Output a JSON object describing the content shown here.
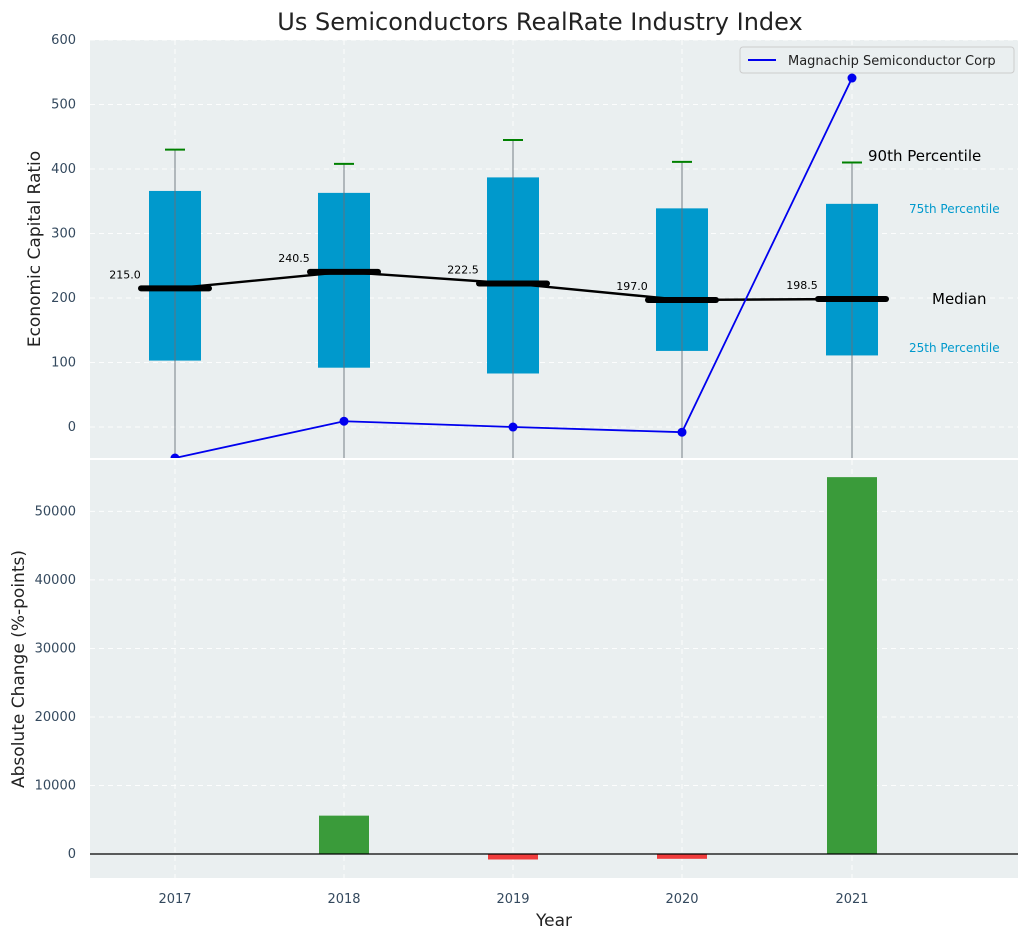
{
  "chart_data": [
    {
      "type": "box",
      "title": "Us Semiconductors RealRate Industry Index",
      "xlabel": "",
      "ylabel": "Economic Capital Ratio",
      "ylim": [
        -48,
        600
      ],
      "yticks": [
        0,
        100,
        200,
        300,
        400,
        500,
        600
      ],
      "categories": [
        "2017",
        "2018",
        "2019",
        "2020",
        "2021"
      ],
      "boxes": [
        {
          "year": "2017",
          "q1": 103,
          "q3": 366,
          "median": 215.0,
          "p90": 430
        },
        {
          "year": "2018",
          "q1": 92,
          "q3": 363,
          "median": 240.5,
          "p90": 408
        },
        {
          "year": "2019",
          "q1": 83,
          "q3": 387,
          "median": 222.5,
          "p90": 445
        },
        {
          "year": "2020",
          "q1": 118,
          "q3": 339,
          "median": 197.0,
          "p90": 411
        },
        {
          "year": "2021",
          "q1": 111,
          "q3": 346,
          "median": 198.5,
          "p90": 410
        }
      ],
      "median_labels": [
        "215.0",
        "240.5",
        "222.5",
        "197.0",
        "198.5"
      ],
      "series": [
        {
          "name": "Magnachip Semiconductor Corp",
          "color": "#0000ee",
          "values": [
            -48,
            9,
            0,
            -8,
            541
          ]
        }
      ],
      "legend": {
        "label": "Magnachip Semiconductor Corp",
        "position": "top-right"
      },
      "annotations": {
        "p90": "90th Percentile",
        "p75": "75th Percentile",
        "median": "Median",
        "p25": "25th Percentile"
      },
      "grid": true
    },
    {
      "type": "bar",
      "xlabel": "Year",
      "ylabel": "Absolute Change (%-points)",
      "ylim": [
        -3500,
        57500
      ],
      "yticks": [
        0,
        10000,
        20000,
        30000,
        40000,
        50000
      ],
      "categories": [
        "2017",
        "2018",
        "2019",
        "2020",
        "2021"
      ],
      "values": [
        0,
        5600,
        -800,
        -700,
        55000
      ],
      "positive_color": "#3a9b3a",
      "negative_color": "#f03c3c",
      "grid": true
    }
  ],
  "colors": {
    "box": "#0099cc",
    "median": "#000000",
    "whisker_cap": "#008000",
    "panel_bg": "#eaeff0"
  }
}
